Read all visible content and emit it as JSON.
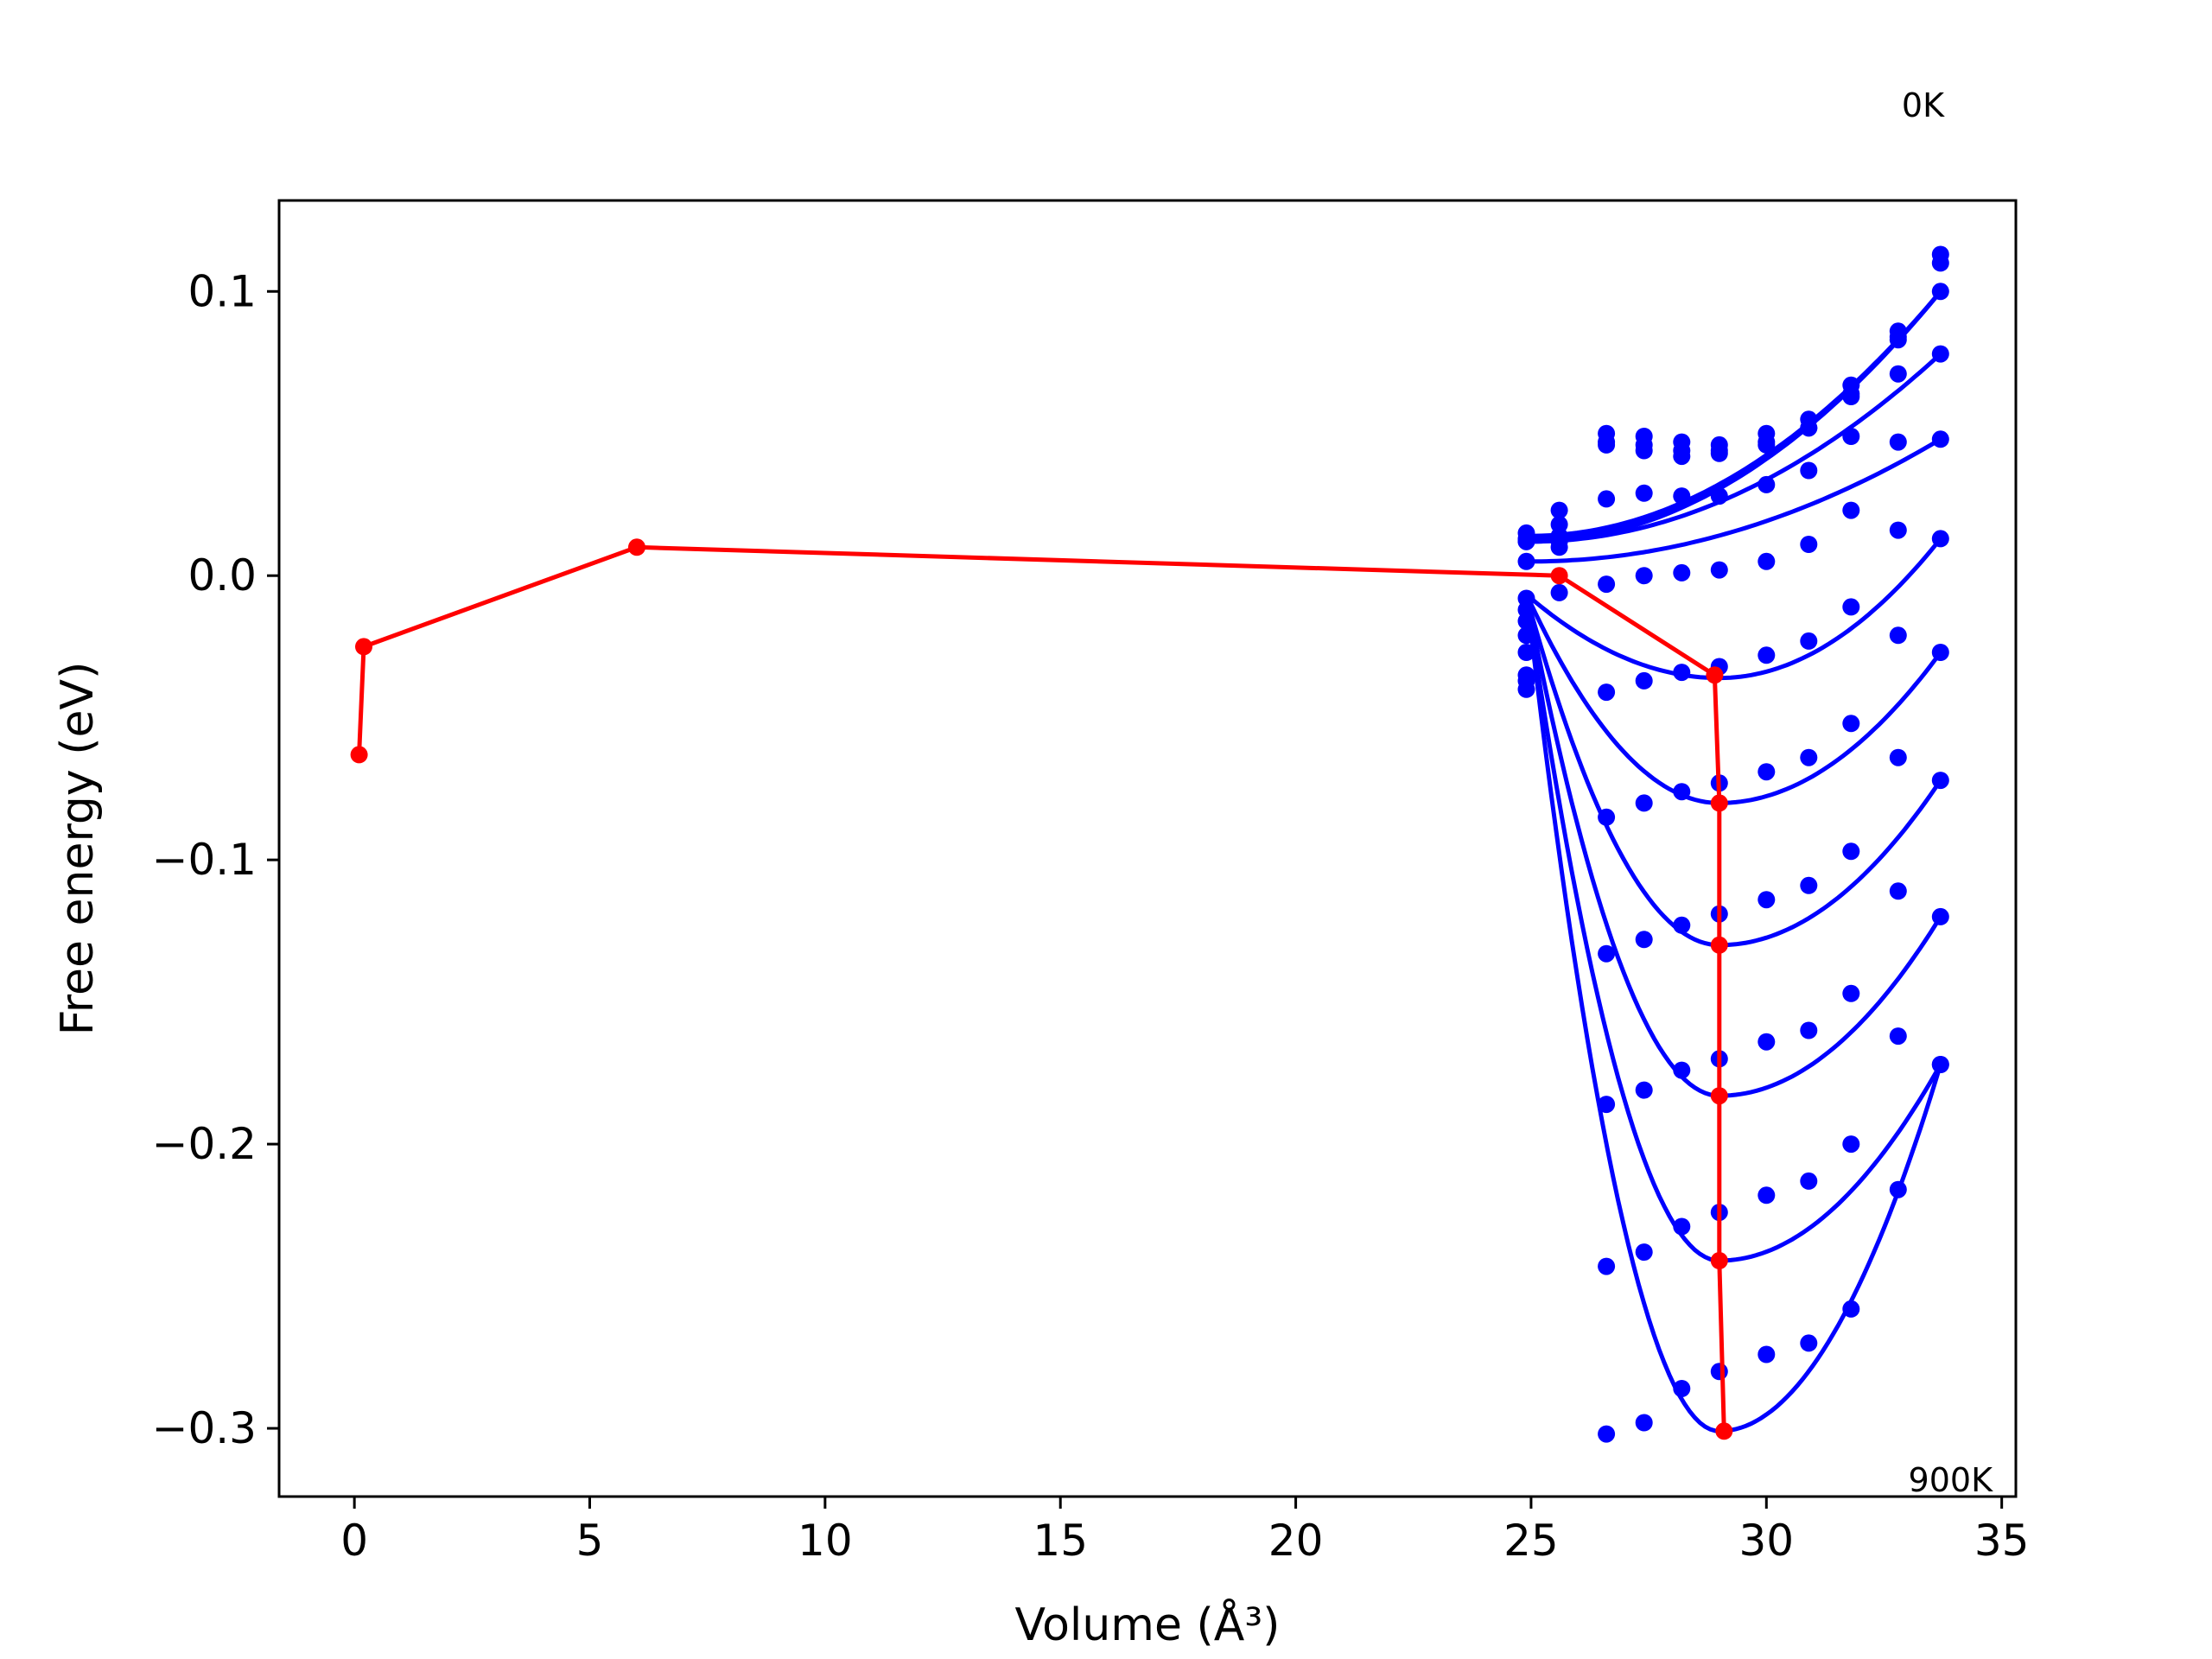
{
  "chart_data": {
    "type": "line",
    "title": "",
    "xlabel": "Volume (Å³)",
    "ylabel": "Free energy (eV)",
    "xlim": [
      -1.6,
      35.3
    ],
    "ylim": [
      -0.324,
      0.132
    ],
    "xticks": [
      0,
      5,
      10,
      15,
      20,
      25,
      30,
      35
    ],
    "yticks": [
      -0.3,
      -0.2,
      -0.1,
      0.0,
      0.1
    ],
    "xtick_labels": [
      "0",
      "5",
      "10",
      "15",
      "20",
      "25",
      "30",
      "35"
    ],
    "ytick_labels": [
      "−0.3",
      "−0.2",
      "−0.1",
      "0.0",
      "0.1"
    ],
    "grid": false,
    "legend": "none",
    "annotations": [
      {
        "text": "0K",
        "position": "above top-right"
      },
      {
        "text": "900K",
        "position": "bottom-right corner"
      }
    ],
    "colors": {
      "fit": "#0000ff",
      "minima": "#ff0000"
    },
    "volumes": [
      24.9,
      25.6,
      26.6,
      27.4,
      28.2,
      29.0,
      30.0,
      30.9,
      31.8,
      32.8,
      33.7
    ],
    "isotherms": [
      {
        "curve": {
          "v0": 25.0,
          "f_left": 0.014,
          "v_min": 25.0,
          "f_min": 0.014,
          "f_right": 0.1
        },
        "points": [
          0.015,
          0.018,
          0.047,
          0.049,
          0.047,
          0.046,
          0.05,
          0.055,
          0.067,
          0.086,
          0.113
        ]
      },
      {
        "curve": {
          "v0": 25.0,
          "f_left": 0.013,
          "v_min": 25.0,
          "f_min": 0.013,
          "f_right": 0.1
        },
        "points": [
          0.013,
          0.014,
          0.046,
          0.046,
          0.044,
          0.044,
          0.047,
          0.052,
          0.064,
          0.084,
          0.11
        ]
      },
      {
        "curve": {
          "v0": 25.0,
          "f_left": 0.012,
          "v_min": 25.0,
          "f_min": 0.012,
          "f_right": 0.1
        },
        "points": [
          0.012,
          0.012,
          0.05,
          0.044,
          0.042,
          0.043,
          0.046,
          0.052,
          0.063,
          0.083,
          0.1
        ]
      },
      {
        "curve": {
          "v0": 25.0,
          "f_left": 0.012,
          "v_min": 25.0,
          "f_min": 0.012,
          "f_right": 0.078
        },
        "points": [
          0.012,
          0.023,
          0.027,
          0.029,
          0.028,
          0.028,
          0.032,
          0.037,
          0.049,
          0.071,
          0.078
        ]
      },
      {
        "curve": {
          "v0": 25.0,
          "f_left": 0.005,
          "v_min": 25.0,
          "f_min": 0.005,
          "f_right": 0.048
        },
        "points": [
          0.005,
          0.01,
          -0.003,
          0.0,
          0.001,
          0.002,
          0.005,
          0.011,
          0.023,
          0.047,
          0.048
        ]
      },
      {
        "curve": {
          "v0": 25.0,
          "f_left": -0.008,
          "v_min": 29.0,
          "f_min": -0.036,
          "f_right": 0.013
        },
        "points": [
          -0.008,
          -0.006,
          -0.041,
          -0.037,
          -0.034,
          -0.032,
          -0.028,
          -0.023,
          -0.011,
          0.016,
          0.013
        ]
      },
      {
        "curve": {
          "v0": 25.0,
          "f_left": -0.01,
          "v_min": 29.0,
          "f_min": -0.08,
          "f_right": -0.027
        },
        "points": [
          -0.012,
          null,
          -0.085,
          -0.08,
          -0.076,
          -0.073,
          -0.069,
          -0.064,
          -0.052,
          -0.021,
          -0.027
        ]
      },
      {
        "curve": {
          "v0": 25.0,
          "f_left": -0.013,
          "v_min": 29.0,
          "f_min": -0.13,
          "f_right": -0.072
        },
        "points": [
          -0.016,
          null,
          -0.133,
          -0.128,
          -0.123,
          -0.119,
          -0.114,
          -0.109,
          -0.097,
          -0.064,
          -0.072
        ]
      },
      {
        "curve": {
          "v0": 25.0,
          "f_left": -0.015,
          "v_min": 29.0,
          "f_min": -0.183,
          "f_right": -0.12
        },
        "points": [
          -0.021,
          null,
          -0.186,
          -0.181,
          -0.174,
          -0.17,
          -0.164,
          -0.16,
          -0.147,
          -0.111,
          -0.12
        ]
      },
      {
        "curve": {
          "v0": 25.0,
          "f_left": -0.018,
          "v_min": 29.0,
          "f_min": -0.241,
          "f_right": -0.172
        },
        "points": [
          -0.027,
          null,
          -0.243,
          -0.238,
          -0.229,
          -0.224,
          -0.218,
          -0.213,
          -0.2,
          -0.162,
          -0.172
        ]
      },
      {
        "curve": {
          "v0": 25.0,
          "f_left": -0.02,
          "v_min": 29.0,
          "f_min": -0.301,
          "f_right": -0.172
        },
        "points": [
          -0.035,
          null,
          -0.302,
          -0.298,
          -0.286,
          -0.28,
          -0.274,
          -0.27,
          -0.258,
          -0.216,
          -0.172
        ]
      }
    ],
    "extra_points": [
      {
        "x": 24.9,
        "y": -0.04
      },
      {
        "x": 24.9,
        "y": -0.037
      }
    ],
    "minima_path": {
      "x": [
        0.1,
        0.2,
        6.0,
        25.6,
        28.9,
        29.0,
        29.0,
        29.0,
        29.0,
        29.1
      ],
      "y": [
        -0.063,
        -0.025,
        0.01,
        0.0,
        -0.035,
        -0.08,
        -0.13,
        -0.183,
        -0.241,
        -0.301
      ]
    }
  }
}
